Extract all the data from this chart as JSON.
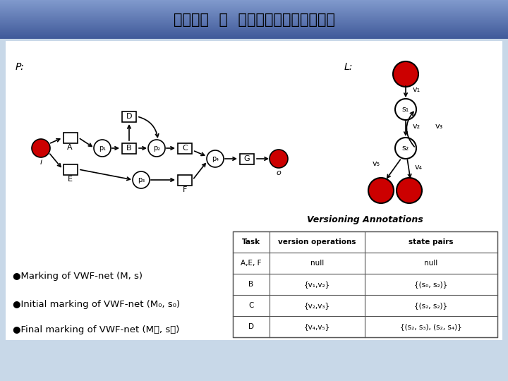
{
  "title_chinese": "解决方案  －  版本标注的业务过程模型",
  "bg_color": "#c8d8e8",
  "title_bar_top": "#7090c0",
  "title_bar_bottom": "#4060a0",
  "content_bg": "#e8eef4",
  "red_color": "#cc0000",
  "bullet_texts": [
    "●Marking of VWF-net (M, s)",
    "●Initial marking of VWF-net (M₀, s₀)",
    "●Final marking of VWF-net (M⁦, s⁦)"
  ],
  "table_title": "Versioning Annotations",
  "table_headers": [
    "Task",
    "version operations",
    "state pairs"
  ],
  "table_rows": [
    [
      "A,E, F",
      "null",
      "null"
    ],
    [
      "B",
      "{v₁,v₂}",
      "{(s₀, s₂)}"
    ],
    [
      "C",
      "{v₂,v₃}",
      "{(s₂, s₂)}"
    ],
    [
      "D",
      "{v₄,v₅}",
      "{(s₂, s₃), (s₂, s₄)}"
    ]
  ],
  "P_label": "P:",
  "L_label": "L:"
}
